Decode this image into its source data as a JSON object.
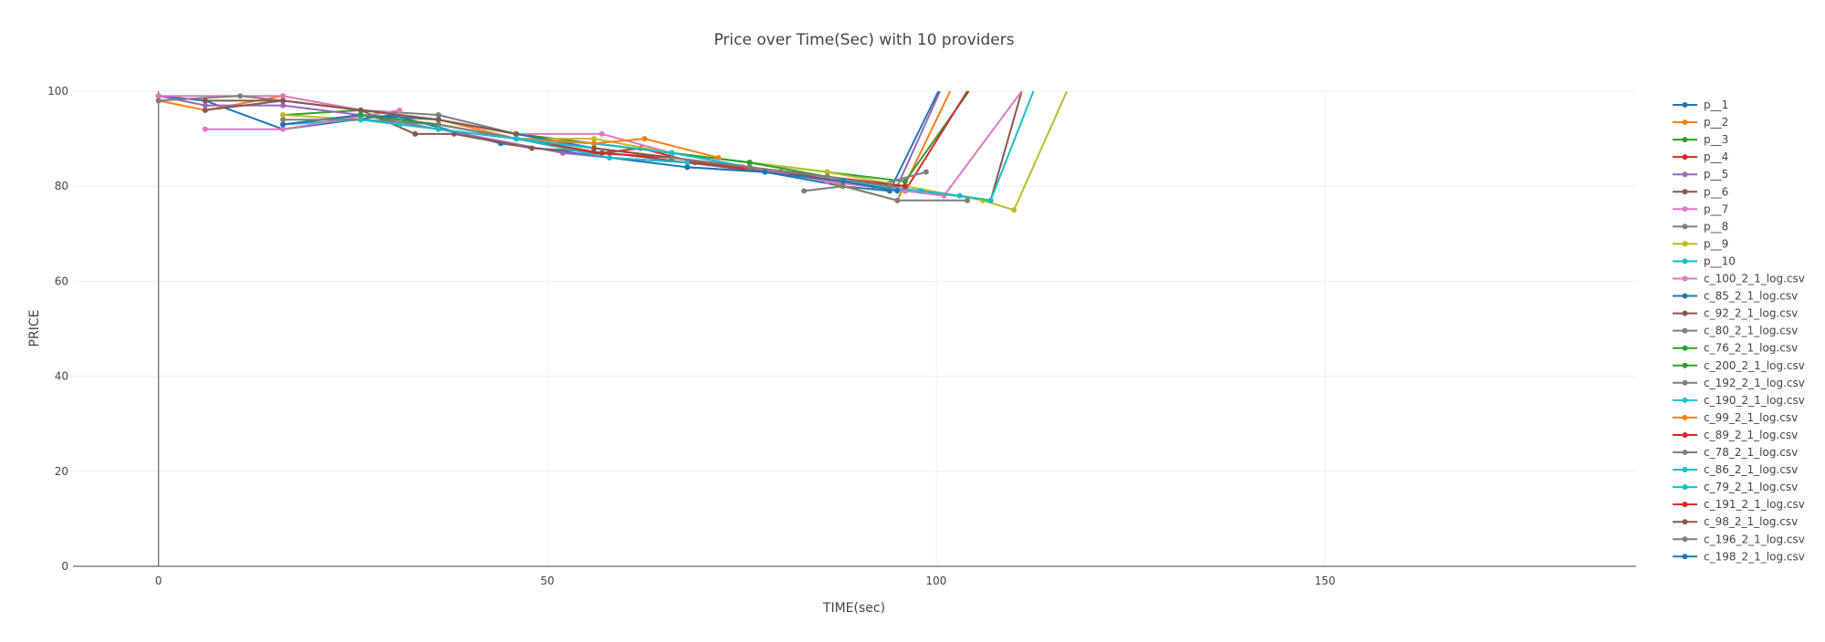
{
  "chart_data": {
    "type": "line",
    "title": "Price over Time(Sec) with 10 providers",
    "xlabel": "TIME(sec)",
    "ylabel": "PRICE",
    "xlim": [
      -11,
      190
    ],
    "ylim": [
      0,
      100
    ],
    "x_ticks": [
      0,
      50,
      100,
      150
    ],
    "x_tick_labels": [
      "0",
      "50",
      "100",
      "150"
    ],
    "y_ticks": [
      0,
      20,
      40,
      60,
      80,
      100
    ],
    "y_tick_labels": [
      "0",
      "20",
      "40",
      "60",
      "80",
      "100"
    ],
    "grid": true,
    "legend_position": "right",
    "series": [
      {
        "name": "p__1",
        "color": "#1f77b4",
        "x": [
          0,
          6,
          16,
          30,
          44,
          58,
          68,
          78,
          88,
          94,
          100.3
        ],
        "y": [
          99,
          98,
          92,
          95,
          89,
          86,
          84,
          83,
          80,
          79,
          100
        ]
      },
      {
        "name": "p__2",
        "color": "#ff7f0e",
        "x": [
          0,
          6,
          16,
          26,
          36,
          46,
          56,
          66,
          76,
          86,
          95,
          101.8
        ],
        "y": [
          98,
          96,
          99,
          96,
          94,
          90,
          88,
          86,
          84,
          81,
          77,
          100
        ]
      },
      {
        "name": "p__3",
        "color": "#2ca02c",
        "x": [
          16,
          26,
          36,
          46,
          56,
          66,
          76,
          86,
          96,
          104.2
        ],
        "y": [
          95,
          96,
          94,
          91,
          89,
          87,
          85,
          83,
          81,
          100
        ]
      },
      {
        "name": "p__4",
        "color": "#d62728",
        "x": [
          16,
          26,
          36,
          46,
          57,
          62,
          69,
          75,
          80,
          88,
          96,
          104
        ],
        "y": [
          93,
          95,
          93,
          90,
          87,
          88,
          85,
          84,
          83,
          81,
          79,
          100
        ]
      },
      {
        "name": "p__5",
        "color": "#9467bd",
        "x": [
          0,
          6,
          16,
          26,
          36,
          52,
          58,
          68,
          78,
          88,
          95,
          100.5
        ],
        "y": [
          99,
          97,
          97,
          95,
          92,
          87,
          86,
          85,
          83,
          81,
          80,
          100
        ]
      },
      {
        "name": "p__6",
        "color": "#8c564b",
        "x": [
          6,
          16,
          26,
          33,
          38,
          48,
          58,
          68,
          78,
          88,
          98,
          107,
          111
        ],
        "y": [
          96,
          98,
          96,
          91,
          91,
          88,
          87,
          85,
          83,
          81,
          79,
          77,
          100
        ]
      },
      {
        "name": "p__7",
        "color": "#e377c2",
        "x": [
          0,
          16,
          26,
          36,
          46,
          57,
          66,
          76,
          86,
          96,
          101,
          111
        ],
        "y": [
          99,
          99,
          96,
          94,
          91,
          91,
          87,
          84,
          81,
          79,
          78,
          100
        ]
      },
      {
        "name": "p__8",
        "color": "#7f7f7f",
        "x": [
          0,
          10.5,
          16,
          26,
          36,
          46,
          56,
          66,
          76,
          86,
          92,
          98.7
        ],
        "y": [
          98,
          99,
          98,
          96,
          95,
          91,
          88,
          86,
          84,
          82,
          80,
          83
        ]
      },
      {
        "name": "p__9",
        "color": "#bcbd22",
        "x": [
          16,
          26,
          36,
          46,
          56,
          66,
          76,
          86,
          96,
          106,
          110,
          116.8
        ],
        "y": [
          95,
          94,
          92,
          90,
          90,
          87,
          85,
          83,
          80,
          77,
          75,
          100
        ]
      },
      {
        "name": "p__10",
        "color": "#17becf",
        "x": [
          16,
          26,
          36,
          46,
          56,
          66,
          76,
          86,
          93,
          98,
          103,
          107,
          112.5
        ],
        "y": [
          93,
          94,
          93,
          90,
          89,
          87,
          85,
          82,
          80,
          79,
          78,
          77,
          100
        ]
      },
      {
        "name": "c_100_2_1_log.csv",
        "color": "#e377c2",
        "x": [
          6,
          16,
          31
        ],
        "y": [
          92,
          92,
          96
        ]
      },
      {
        "name": "c_85_2_1_log.csv",
        "color": "#1f77b4",
        "x": [
          16,
          26,
          36,
          46,
          56
        ],
        "y": [
          93,
          95,
          94,
          91,
          88
        ]
      },
      {
        "name": "c_92_2_1_log.csv",
        "color": "#8c564b",
        "x": [
          6,
          16,
          26,
          36,
          46
        ],
        "y": [
          98,
          98,
          96,
          94,
          91
        ]
      },
      {
        "name": "c_80_2_1_log.csv",
        "color": "#7f7f7f",
        "x": [
          16,
          26,
          36,
          46,
          56
        ],
        "y": [
          94,
          94,
          93,
          90,
          88
        ]
      },
      {
        "name": "c_76_2_1_log.csv",
        "color": "#2ca02c",
        "x": [
          26,
          36,
          46,
          56,
          66
        ],
        "y": [
          95,
          93,
          90,
          89,
          87
        ]
      },
      {
        "name": "c_200_2_1_log.csv",
        "color": "#2ca02c",
        "x": [
          56,
          66,
          76,
          86,
          96
        ],
        "y": [
          89,
          87,
          85,
          82,
          80
        ]
      },
      {
        "name": "c_192_2_1_log.csv",
        "color": "#7f7f7f",
        "x": [
          83,
          88,
          95,
          104
        ],
        "y": [
          79,
          80,
          77,
          77
        ]
      },
      {
        "name": "c_190_2_1_log.csv",
        "color": "#17becf",
        "x": [
          46,
          56,
          66,
          76
        ],
        "y": [
          90,
          89,
          87,
          84
        ]
      },
      {
        "name": "c_99_2_1_log.csv",
        "color": "#ff7f0e",
        "x": [
          46,
          56,
          62.5,
          72
        ],
        "y": [
          90,
          89,
          90,
          86
        ]
      },
      {
        "name": "c_89_2_1_log.csv",
        "color": "#d62728",
        "x": [
          46,
          56,
          66,
          75
        ],
        "y": [
          90,
          87,
          86,
          84
        ]
      },
      {
        "name": "c_78_2_1_log.csv",
        "color": "#7f7f7f",
        "x": [
          36,
          46,
          56,
          66
        ],
        "y": [
          93,
          90,
          88,
          86
        ]
      },
      {
        "name": "c_86_2_1_log.csv",
        "color": "#17becf",
        "x": [
          36,
          46,
          58,
          68
        ],
        "y": [
          92,
          90,
          86,
          85
        ]
      },
      {
        "name": "c_79_2_1_log.csv",
        "color": "#17becf",
        "x": [
          26,
          31,
          46,
          56
        ],
        "y": [
          94,
          93,
          90,
          88
        ]
      },
      {
        "name": "c_191_2_1_log.csv",
        "color": "#d62728",
        "x": [
          66,
          76,
          86,
          96
        ],
        "y": [
          86,
          84,
          82,
          80
        ]
      },
      {
        "name": "c_98_2_1_log.csv",
        "color": "#8c564b",
        "x": [
          56,
          66,
          76,
          86
        ],
        "y": [
          88,
          86,
          84,
          82
        ]
      },
      {
        "name": "c_196_2_1_log.csv",
        "color": "#7f7f7f",
        "x": [
          66,
          76,
          86,
          94
        ],
        "y": [
          86,
          84,
          82,
          80
        ]
      },
      {
        "name": "c_198_2_1_log.csv",
        "color": "#1f77b4",
        "x": [
          68,
          78,
          88,
          95
        ],
        "y": [
          84,
          83,
          81,
          79
        ]
      }
    ]
  }
}
